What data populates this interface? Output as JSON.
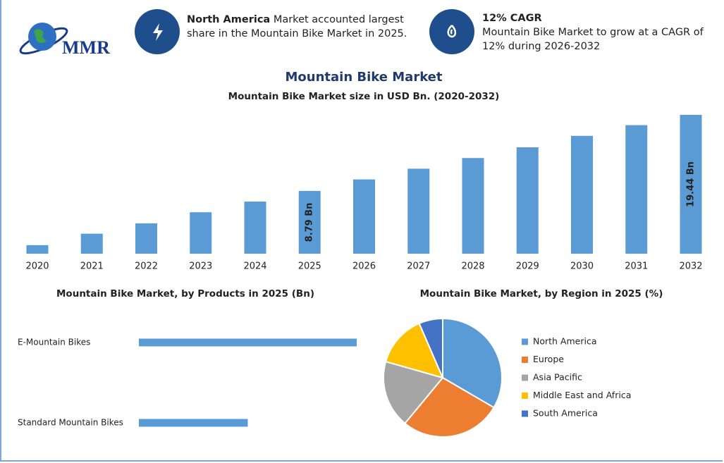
{
  "header": {
    "logo": "MMR",
    "highlights": [
      {
        "title": "North America",
        "text": "Market accounted largest share in the Mountain Bike Market in 2025."
      },
      {
        "title": "12% CAGR",
        "text": "Mountain Bike Market to grow at a CAGR of 12% during 2026-2032"
      }
    ]
  },
  "chart_data": [
    {
      "type": "bar",
      "title": "Mountain Bike Market",
      "subtitle": "Mountain Bike Market size in USD Bn. (2020-2032)",
      "categories": [
        "2020",
        "2021",
        "2022",
        "2023",
        "2024",
        "2025",
        "2026",
        "2027",
        "2028",
        "2029",
        "2030",
        "2031",
        "2032"
      ],
      "values": [
        1.2,
        2.8,
        4.25,
        5.8,
        7.3,
        8.79,
        10.4,
        11.9,
        13.4,
        14.9,
        16.5,
        18.0,
        19.44
      ],
      "value_labels": [
        null,
        null,
        null,
        null,
        null,
        "8.79 Bn",
        null,
        null,
        null,
        null,
        null,
        null,
        "19.44 Bn"
      ],
      "color": "#5b9bd5"
    },
    {
      "type": "hbar",
      "title": "Mountain Bike Market, by Products in 2025 (Bn)",
      "categories": [
        "E-Mountain Bikes",
        "Standard Mountain Bikes"
      ],
      "values": [
        5.86,
        2.93
      ],
      "color": "#5b9bd5"
    },
    {
      "type": "pie",
      "title": "Mountain Bike Market, by Region in 2025 (%)",
      "categories": [
        "North America",
        "Europe",
        "Asia Pacific",
        "Middle East and Africa",
        "South America"
      ],
      "values": [
        33.4,
        27.6,
        18.4,
        14.1,
        6.5
      ],
      "colors": [
        "#5b9bd5",
        "#ed7d31",
        "#a5a5a5",
        "#ffc000",
        "#4472c4"
      ],
      "legend": "right"
    }
  ]
}
